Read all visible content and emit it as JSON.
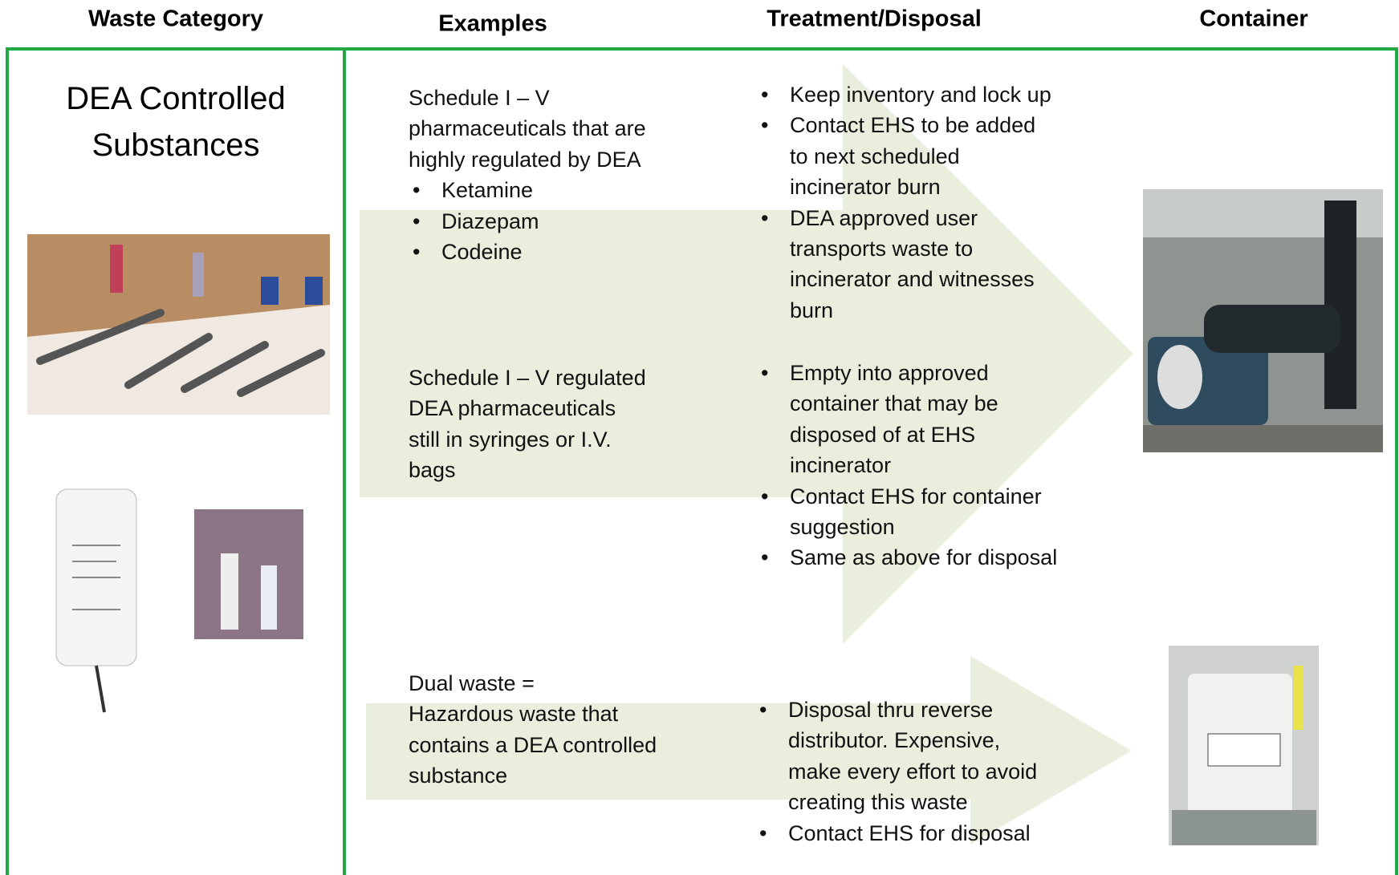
{
  "header": {
    "columns": [
      "Waste Category",
      "Examples",
      "Treatment/Disposal",
      "Container"
    ]
  },
  "category": {
    "title": [
      "DEA Controlled",
      "Substances"
    ]
  },
  "rows": [
    {
      "examples": {
        "lines": [
          "Schedule I – V",
          "pharmaceuticals that are",
          "highly regulated by DEA"
        ],
        "items": [
          "Ketamine",
          "Diazepam",
          "Codeine"
        ]
      },
      "treatment": [
        [
          "Keep inventory and lock up"
        ],
        [
          "Contact EHS to be added",
          "to next scheduled",
          "incinerator burn"
        ],
        [
          "DEA approved user",
          "transports waste to",
          "incinerator and witnesses",
          "burn"
        ]
      ]
    },
    {
      "examples": {
        "lines": [
          "Schedule I – V regulated",
          "DEA pharmaceuticals",
          "still in syringes or I.V.",
          "bags"
        ],
        "items": []
      },
      "treatment": [
        [
          "Empty into approved",
          "container that may be",
          "disposed of at EHS",
          "incinerator"
        ],
        [
          "Contact EHS for container",
          "suggestion"
        ],
        [
          "Same as above for disposal"
        ]
      ]
    },
    {
      "examples": {
        "lines": [
          "Dual waste =",
          "Hazardous waste that",
          "contains a DEA controlled",
          "substance"
        ],
        "items": []
      },
      "treatment": [
        [
          "Disposal thru reverse",
          "distributor.  Expensive,",
          "make every effort to avoid",
          "creating this waste"
        ],
        [
          "Contact EHS for disposal"
        ]
      ]
    }
  ]
}
